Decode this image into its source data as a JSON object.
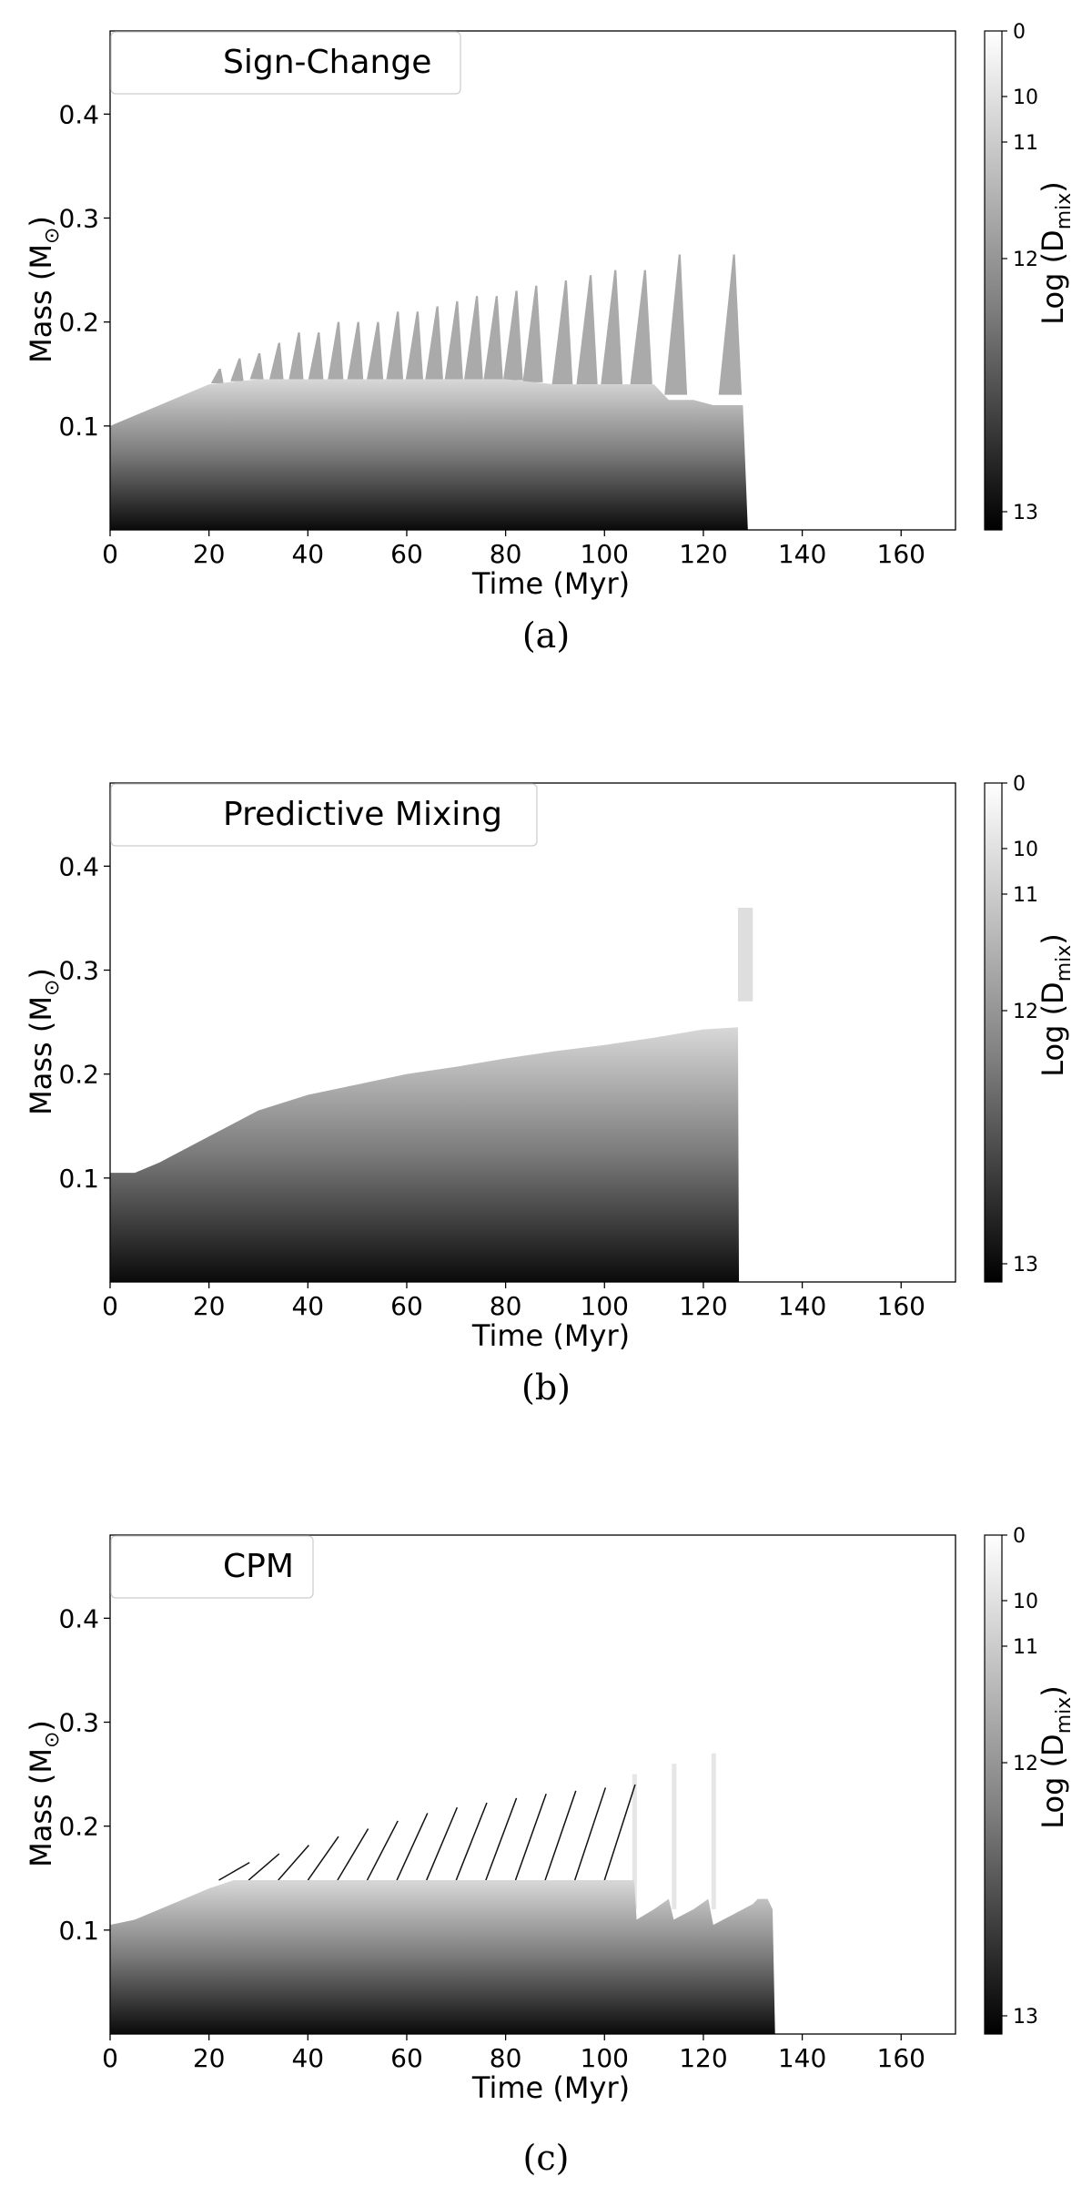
{
  "figure": {
    "panels": [
      {
        "id": "a",
        "caption": "(a)",
        "legend_label": "Sign-Change",
        "xlabel": "Time (Myr)",
        "ylabel_main": "Mass (M",
        "ylabel_sub": "⊙",
        "ylabel_end": ")",
        "colorbar_label_main": "Log (D",
        "colorbar_label_sub": "mix",
        "colorbar_label_end": ")",
        "xticks": [
          "0",
          "20",
          "40",
          "60",
          "80",
          "100",
          "120",
          "140",
          "160"
        ],
        "yticks": [
          "0.1",
          "0.2",
          "0.3",
          "0.4"
        ],
        "colorbar_ticks": [
          "0",
          "10",
          "11",
          "12",
          "13"
        ]
      },
      {
        "id": "b",
        "caption": "(b)",
        "legend_label": "Predictive Mixing",
        "xlabel": "Time (Myr)",
        "ylabel_main": "Mass (M",
        "ylabel_sub": "⊙",
        "ylabel_end": ")",
        "colorbar_label_main": "Log (D",
        "colorbar_label_sub": "mix",
        "colorbar_label_end": ")",
        "xticks": [
          "0",
          "20",
          "40",
          "60",
          "80",
          "100",
          "120",
          "140",
          "160"
        ],
        "yticks": [
          "0.1",
          "0.2",
          "0.3",
          "0.4"
        ],
        "colorbar_ticks": [
          "0",
          "10",
          "11",
          "12",
          "13"
        ]
      },
      {
        "id": "c",
        "caption": "(c)",
        "legend_label": "CPM",
        "xlabel": "Time (Myr)",
        "ylabel_main": "Mass (M",
        "ylabel_sub": "⊙",
        "ylabel_end": ")",
        "colorbar_label_main": "Log (D",
        "colorbar_label_sub": "mix",
        "colorbar_label_end": ")",
        "xticks": [
          "0",
          "20",
          "40",
          "60",
          "80",
          "100",
          "120",
          "140",
          "160"
        ],
        "yticks": [
          "0.1",
          "0.2",
          "0.3",
          "0.4"
        ],
        "colorbar_ticks": [
          "0",
          "10",
          "11",
          "12",
          "13"
        ]
      }
    ]
  },
  "chart_data": [
    {
      "type": "area",
      "legend": "Sign-Change",
      "xlabel": "Time (Myr)",
      "ylabel": "Mass (M⊙)",
      "colorbar_label": "Log (Dmix)",
      "xlim": [
        0,
        171
      ],
      "ylim": [
        0,
        0.48
      ],
      "colorbar_ticks": [
        0,
        10,
        11,
        12,
        13
      ],
      "core_boundary": {
        "x": [
          0,
          5,
          10,
          20,
          30,
          40,
          50,
          60,
          70,
          80,
          90,
          100,
          110,
          113,
          118,
          122,
          126,
          128,
          129
        ],
        "y": [
          0.1,
          0.11,
          0.12,
          0.14,
          0.145,
          0.145,
          0.145,
          0.145,
          0.145,
          0.145,
          0.14,
          0.14,
          0.14,
          0.125,
          0.125,
          0.12,
          0.12,
          0.12,
          0.0
        ]
      },
      "spike_peaks": {
        "x": [
          22,
          26,
          30,
          34,
          38,
          42,
          46,
          50,
          54,
          58,
          62,
          66,
          70,
          74,
          78,
          82,
          86,
          92,
          97,
          102,
          108,
          115,
          126
        ],
        "y": [
          0.155,
          0.165,
          0.17,
          0.18,
          0.19,
          0.19,
          0.2,
          0.2,
          0.2,
          0.21,
          0.21,
          0.215,
          0.22,
          0.225,
          0.225,
          0.23,
          0.235,
          0.24,
          0.245,
          0.25,
          0.25,
          0.265,
          0.265
        ]
      }
    },
    {
      "type": "area",
      "legend": "Predictive Mixing",
      "xlabel": "Time (Myr)",
      "ylabel": "Mass (M⊙)",
      "colorbar_label": "Log (Dmix)",
      "xlim": [
        0,
        171
      ],
      "ylim": [
        0,
        0.48
      ],
      "colorbar_ticks": [
        0,
        10,
        11,
        12,
        13
      ],
      "core_boundary": {
        "x": [
          0,
          5,
          10,
          20,
          30,
          40,
          50,
          60,
          70,
          80,
          90,
          100,
          110,
          120,
          127,
          127.2
        ],
        "y": [
          0.105,
          0.105,
          0.115,
          0.14,
          0.165,
          0.18,
          0.19,
          0.2,
          0.207,
          0.215,
          0.222,
          0.228,
          0.235,
          0.243,
          0.245,
          0.0
        ]
      },
      "late_spike": {
        "x": [
          127,
          130
        ],
        "y": [
          0.27,
          0.36
        ]
      }
    },
    {
      "type": "area",
      "legend": "CPM",
      "xlabel": "Time (Myr)",
      "ylabel": "Mass (M⊙)",
      "colorbar_label": "Log (Dmix)",
      "xlim": [
        0,
        171
      ],
      "ylim": [
        0,
        0.48
      ],
      "colorbar_ticks": [
        0,
        10,
        11,
        12,
        13
      ],
      "core_boundary": {
        "x": [
          0,
          5,
          10,
          15,
          20,
          25,
          106,
          106.5,
          110,
          113,
          114,
          118,
          121,
          122,
          126,
          130,
          131,
          133,
          134,
          134.5
        ],
        "y": [
          0.105,
          0.11,
          0.12,
          0.13,
          0.14,
          0.148,
          0.148,
          0.11,
          0.12,
          0.13,
          0.11,
          0.12,
          0.13,
          0.105,
          0.115,
          0.125,
          0.13,
          0.13,
          0.12,
          0.0
        ]
      },
      "hatched_region": {
        "x": [
          22,
          40,
          60,
          80,
          100,
          106
        ],
        "y_top": [
          0.165,
          0.19,
          0.215,
          0.23,
          0.24,
          0.245
        ],
        "y_bottom": 0.148
      },
      "late_spikes": {
        "x": [
          106,
          114,
          122
        ],
        "y": [
          0.25,
          0.26,
          0.27
        ]
      }
    }
  ]
}
